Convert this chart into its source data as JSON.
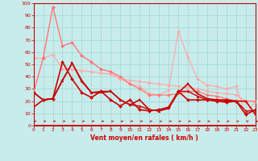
{
  "xlabel": "Vent moyen/en rafales ( km/h )",
  "xlim": [
    0,
    23
  ],
  "ylim": [
    0,
    100
  ],
  "yticks": [
    0,
    10,
    20,
    30,
    40,
    50,
    60,
    70,
    80,
    90,
    100
  ],
  "xticks": [
    0,
    1,
    2,
    3,
    4,
    5,
    6,
    7,
    8,
    9,
    10,
    11,
    12,
    13,
    14,
    15,
    16,
    17,
    18,
    19,
    20,
    21,
    22,
    23
  ],
  "bg_color": "#c8ecec",
  "grid_color": "#a0d4d4",
  "series": [
    {
      "x": [
        0,
        1,
        2,
        3,
        4,
        5,
        6,
        7,
        8,
        9,
        10,
        11,
        12,
        13,
        14,
        15,
        16,
        17,
        18,
        19,
        20,
        21,
        22,
        23
      ],
      "y": [
        55,
        55,
        58,
        46,
        46,
        45,
        44,
        43,
        42,
        38,
        37,
        36,
        35,
        34,
        33,
        32,
        31,
        30,
        28,
        27,
        26,
        25,
        20,
        20
      ],
      "color": "#ffaaaa",
      "marker": "D",
      "markersize": 2.0,
      "linewidth": 0.9,
      "zorder": 2
    },
    {
      "x": [
        0,
        1,
        2,
        3,
        4,
        5,
        6,
        7,
        8,
        9,
        10,
        11,
        12,
        13,
        14,
        15,
        16,
        17,
        18,
        19,
        20,
        21,
        22,
        23
      ],
      "y": [
        27,
        56,
        97,
        65,
        68,
        57,
        52,
        46,
        44,
        38,
        34,
        32,
        26,
        25,
        29,
        77,
        56,
        38,
        33,
        32,
        30,
        32,
        9,
        20
      ],
      "color": "#ffaaaa",
      "marker": "D",
      "markersize": 2.0,
      "linewidth": 0.9,
      "zorder": 2
    },
    {
      "x": [
        0,
        1,
        2,
        3,
        4,
        5,
        6,
        7,
        8,
        9,
        10,
        11,
        12,
        13,
        14,
        15,
        16,
        17,
        18,
        19,
        20,
        21,
        22,
        23
      ],
      "y": [
        27,
        55,
        97,
        65,
        68,
        57,
        52,
        46,
        44,
        40,
        34,
        30,
        25,
        25,
        25,
        26,
        28,
        28,
        25,
        24,
        22,
        20,
        20,
        20
      ],
      "color": "#ff7777",
      "marker": "D",
      "markersize": 2.0,
      "linewidth": 0.9,
      "zorder": 3
    },
    {
      "x": [
        0,
        1,
        2,
        3,
        4,
        5,
        6,
        7,
        8,
        9,
        10,
        11,
        12,
        13,
        14,
        15,
        16,
        17,
        18,
        19,
        20,
        21,
        22,
        23
      ],
      "y": [
        27,
        21,
        22,
        52,
        38,
        27,
        23,
        28,
        21,
        16,
        21,
        13,
        12,
        13,
        15,
        28,
        21,
        21,
        21,
        20,
        19,
        20,
        9,
        13
      ],
      "color": "#cc0000",
      "marker": "D",
      "markersize": 2.0,
      "linewidth": 1.2,
      "zorder": 4
    },
    {
      "x": [
        0,
        1,
        2,
        3,
        4,
        5,
        6,
        7,
        8,
        9,
        10,
        11,
        12,
        13,
        14,
        15,
        16,
        17,
        18,
        19,
        20,
        21,
        22,
        23
      ],
      "y": [
        15,
        21,
        22,
        37,
        51,
        36,
        27,
        27,
        28,
        21,
        17,
        21,
        13,
        12,
        14,
        27,
        34,
        26,
        22,
        21,
        21,
        20,
        20,
        9
      ],
      "color": "#cc0000",
      "marker": "s",
      "markersize": 2.0,
      "linewidth": 1.2,
      "zorder": 4
    },
    {
      "x": [
        0,
        1,
        2,
        3,
        4,
        5,
        6,
        7,
        8,
        9,
        10,
        11,
        12,
        13,
        14,
        15,
        16,
        17,
        18,
        19,
        20,
        21,
        22,
        23
      ],
      "y": [
        27,
        21,
        22,
        37,
        51,
        37,
        27,
        28,
        28,
        21,
        17,
        16,
        13,
        12,
        15,
        28,
        28,
        24,
        21,
        21,
        20,
        20,
        12,
        12
      ],
      "color": "#cc0000",
      "marker": "^",
      "markersize": 2.0,
      "linewidth": 1.0,
      "zorder": 3
    }
  ]
}
